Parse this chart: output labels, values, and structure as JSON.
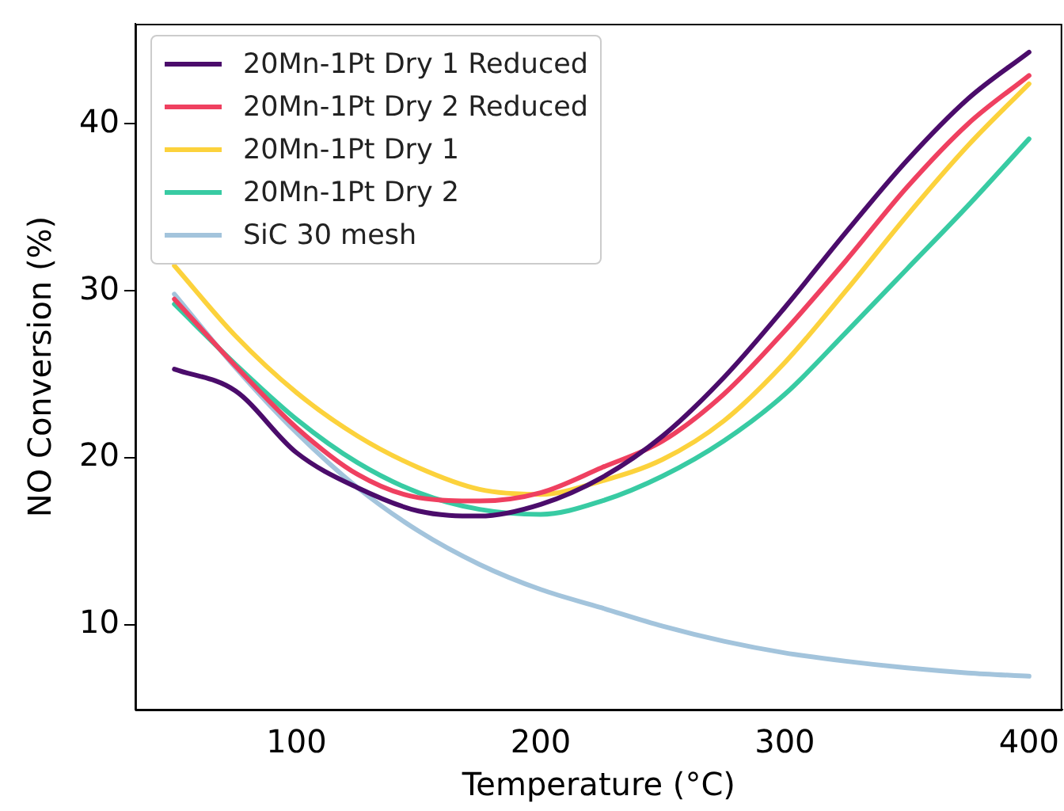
{
  "chart_data": {
    "type": "line",
    "xlabel": "Temperature (°C)",
    "ylabel": "NO Conversion (%)",
    "x": [
      50,
      75,
      100,
      125,
      150,
      175,
      200,
      225,
      250,
      275,
      300,
      325,
      350,
      375,
      400
    ],
    "xlim": [
      34,
      413.6
    ],
    "xticks": [
      100,
      200,
      300,
      400
    ],
    "ylim": [
      4.9,
      46
    ],
    "yticks": [
      10,
      20,
      30,
      40
    ],
    "grid": false,
    "legend": "top left",
    "marker": "none",
    "line_style": "solid",
    "series": [
      {
        "name": "20Mn-1Pt Dry 1 Reduced",
        "color": "#4b0c6b",
        "values": [
          25.3,
          24.0,
          20.3,
          18.2,
          16.8,
          16.5,
          17.2,
          18.8,
          21.3,
          24.8,
          29.0,
          33.5,
          37.8,
          41.5,
          44.3
        ]
      },
      {
        "name": "20Mn-1Pt Dry 2 Reduced",
        "color": "#ef4060",
        "values": [
          29.5,
          25.5,
          21.8,
          19.0,
          17.6,
          17.4,
          17.9,
          19.4,
          21.0,
          23.8,
          27.6,
          31.8,
          36.2,
          40.0,
          42.9
        ]
      },
      {
        "name": "20Mn-1Pt Dry 1",
        "color": "#fcd23c",
        "values": [
          31.5,
          27.3,
          23.9,
          21.3,
          19.4,
          18.1,
          17.8,
          18.6,
          19.9,
          22.2,
          25.7,
          30.0,
          34.5,
          38.7,
          42.4
        ]
      },
      {
        "name": "20Mn-1Pt Dry 2",
        "color": "#38cba3",
        "values": [
          29.2,
          25.6,
          22.3,
          19.7,
          17.9,
          16.9,
          16.6,
          17.4,
          18.9,
          21.0,
          23.8,
          27.5,
          31.3,
          35.1,
          39.1
        ]
      },
      {
        "name": "SiC 30 mesh",
        "color": "#a3c4dc",
        "values": [
          29.8,
          25.4,
          21.5,
          18.2,
          15.6,
          13.6,
          12.1,
          11.0,
          9.9,
          9.0,
          8.3,
          7.8,
          7.4,
          7.1,
          6.9
        ]
      }
    ]
  }
}
